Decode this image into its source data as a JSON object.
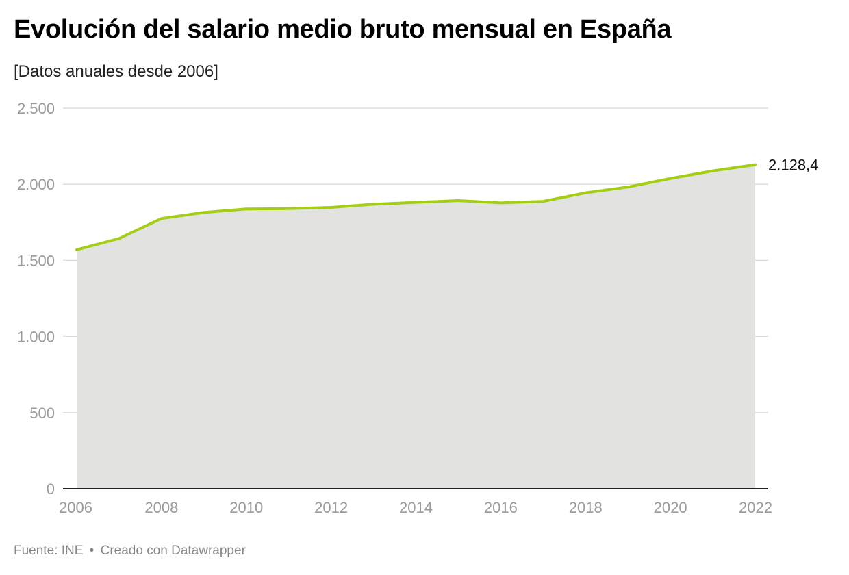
{
  "header": {
    "title": "Evolución del salario medio bruto mensual en España",
    "subtitle": "[Datos anuales desde 2006]"
  },
  "footer": {
    "source": "Fuente: INE",
    "separator": "•",
    "credit": "Creado con Datawrapper"
  },
  "colors": {
    "line": "#a5cd14",
    "area": "#e2e2e0",
    "grid": "#dddddd",
    "axis": "#222222"
  },
  "chart_data": {
    "type": "area",
    "title": "Evolución del salario medio bruto mensual en España",
    "subtitle": "[Datos anuales desde 2006]",
    "xlabel": "",
    "ylabel": "",
    "x": [
      2006,
      2007,
      2008,
      2009,
      2010,
      2011,
      2012,
      2013,
      2014,
      2015,
      2016,
      2017,
      2018,
      2019,
      2020,
      2021,
      2022
    ],
    "series": [
      {
        "name": "Salario medio bruto mensual",
        "values": [
          1570,
          1644,
          1775,
          1815,
          1838,
          1840,
          1848,
          1869,
          1881,
          1893,
          1878,
          1888,
          1944,
          1982,
          2038,
          2088,
          2128.4
        ]
      }
    ],
    "ylim": [
      0,
      2500
    ],
    "y_ticks": [
      0,
      500,
      1000,
      1500,
      2000,
      2500
    ],
    "y_tick_labels": [
      "0",
      "500",
      "1.000",
      "1.500",
      "2.000",
      "2.500"
    ],
    "x_ticks": [
      2006,
      2008,
      2010,
      2012,
      2014,
      2016,
      2018,
      2020,
      2022
    ],
    "x_tick_labels": [
      "2006",
      "2008",
      "2010",
      "2012",
      "2014",
      "2016",
      "2018",
      "2020",
      "2022"
    ],
    "end_label": "2.128,4",
    "grid": true
  }
}
